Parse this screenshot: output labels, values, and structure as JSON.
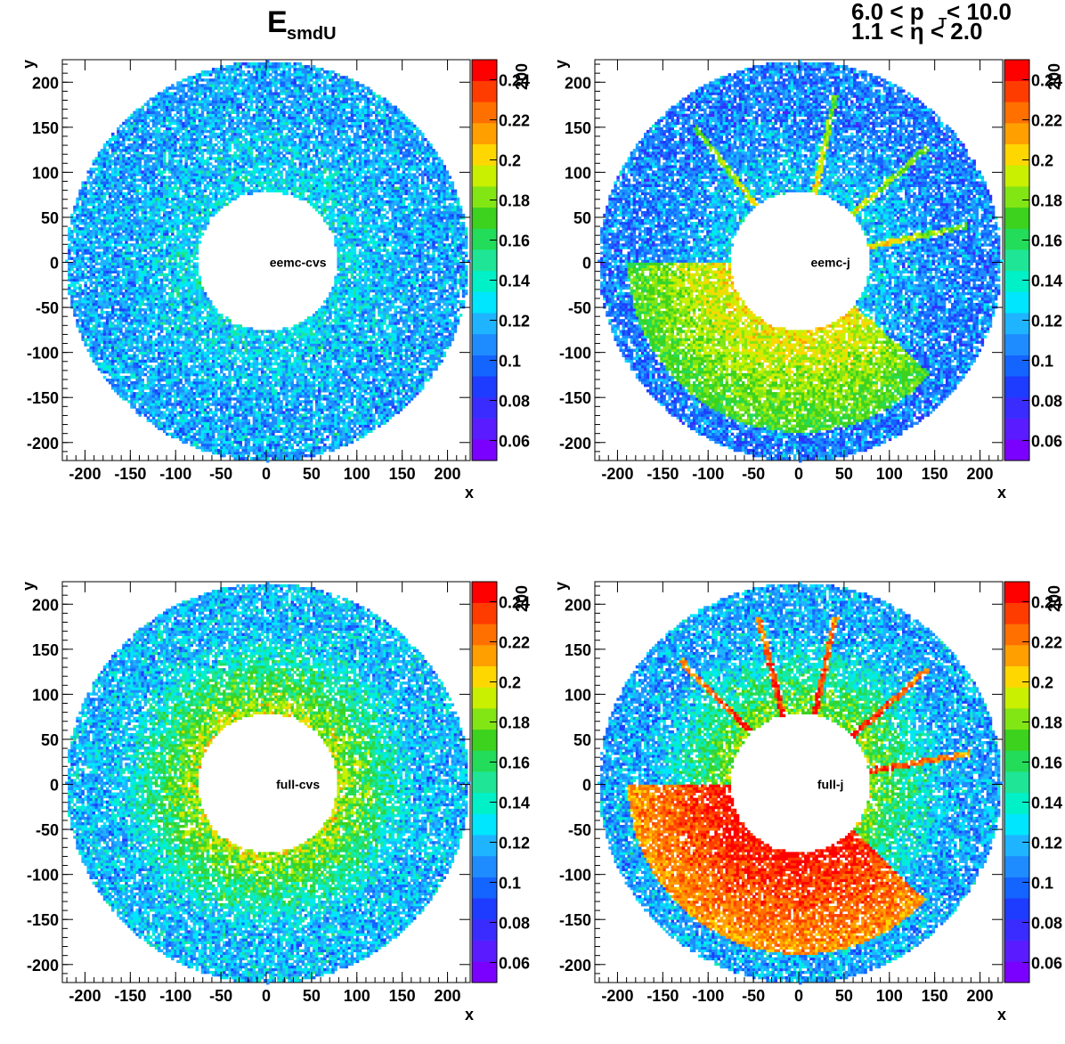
{
  "figure": {
    "title_main": "E",
    "title_sub": "smdU",
    "cut_pt_lo": "6.0 < p",
    "cut_pt_sub": "T",
    "cut_pt_hi": " < 10.0",
    "cut_eta": "1.1 < η < 2.0"
  },
  "colors": {
    "palette": [
      "#7a00ff",
      "#5a1cff",
      "#3a2cff",
      "#1e3cff",
      "#1464ff",
      "#1e8cff",
      "#1eb4ff",
      "#00e6ff",
      "#00f0c8",
      "#1ee696",
      "#22dc5a",
      "#3cd21e",
      "#82e614",
      "#c8f000",
      "#ffd700",
      "#ffa000",
      "#ff7000",
      "#ff3c00",
      "#ff0000"
    ]
  },
  "chart_data": [
    {
      "type": "heatmap",
      "label": "eemc-cvs",
      "xlabel": "x",
      "ylabel": "y",
      "zlabel": "200",
      "xlim": [
        -225,
        225
      ],
      "ylim": [
        -220,
        225
      ],
      "zlim": [
        0.05,
        0.25
      ],
      "xticks": [
        -200,
        -150,
        -100,
        -50,
        0,
        50,
        100,
        150,
        200
      ],
      "yticks": [
        -200,
        -150,
        -100,
        -50,
        0,
        50,
        100,
        150,
        200
      ],
      "zticks": [
        0.06,
        0.08,
        0.1,
        0.12,
        0.14,
        0.16,
        0.18,
        0.2,
        0.22,
        0.24
      ],
      "r_inner": 77,
      "r_outer": 222,
      "z_inner": 0.13,
      "z_outer": 0.115,
      "hot_rays_deg": [],
      "ray_z": 0.0
    },
    {
      "type": "heatmap",
      "label": "eemc-j",
      "xlabel": "x",
      "ylabel": "y",
      "zlabel": "200",
      "xlim": [
        -225,
        225
      ],
      "ylim": [
        -220,
        225
      ],
      "zlim": [
        0.05,
        0.25
      ],
      "xticks": [
        -200,
        -150,
        -100,
        -50,
        0,
        50,
        100,
        150,
        200
      ],
      "yticks": [
        -200,
        -150,
        -100,
        -50,
        0,
        50,
        100,
        150,
        200
      ],
      "zticks": [
        0.06,
        0.08,
        0.1,
        0.12,
        0.14,
        0.16,
        0.18,
        0.2,
        0.22,
        0.24
      ],
      "r_inner": 77,
      "r_outer": 222,
      "z_inner": 0.125,
      "z_outer": 0.105,
      "hot_rays_deg": [
        12,
        42,
        78,
        128,
        200,
        236,
        280,
        300,
        318
      ],
      "ray_z": 0.2
    },
    {
      "type": "heatmap",
      "label": "full-cvs",
      "xlabel": "x",
      "ylabel": "y",
      "zlabel": "200",
      "xlim": [
        -225,
        225
      ],
      "ylim": [
        -220,
        225
      ],
      "zlim": [
        0.05,
        0.25
      ],
      "xticks": [
        -200,
        -150,
        -100,
        -50,
        0,
        50,
        100,
        150,
        200
      ],
      "yticks": [
        -200,
        -150,
        -100,
        -50,
        0,
        50,
        100,
        150,
        200
      ],
      "zticks": [
        0.06,
        0.08,
        0.1,
        0.12,
        0.14,
        0.16,
        0.18,
        0.2,
        0.22,
        0.24
      ],
      "r_inner": 77,
      "r_outer": 222,
      "z_inner": 0.19,
      "z_outer": 0.12,
      "hot_rays_deg": [],
      "ray_z": 0.0
    },
    {
      "type": "heatmap",
      "label": "full-j",
      "xlabel": "x",
      "ylabel": "y",
      "zlabel": "200",
      "xlim": [
        -225,
        225
      ],
      "ylim": [
        -220,
        225
      ],
      "zlim": [
        0.05,
        0.25
      ],
      "xticks": [
        -200,
        -150,
        -100,
        -50,
        0,
        50,
        100,
        150,
        200
      ],
      "yticks": [
        -200,
        -150,
        -100,
        -50,
        0,
        50,
        100,
        150,
        200
      ],
      "zticks": [
        0.06,
        0.08,
        0.1,
        0.12,
        0.14,
        0.16,
        0.18,
        0.2,
        0.22,
        0.24
      ],
      "r_inner": 77,
      "r_outer": 222,
      "z_inner": 0.18,
      "z_outer": 0.115,
      "hot_rays_deg": [
        10,
        42,
        78,
        104,
        134,
        200,
        228,
        258,
        288,
        316
      ],
      "ray_z": 0.245
    }
  ]
}
